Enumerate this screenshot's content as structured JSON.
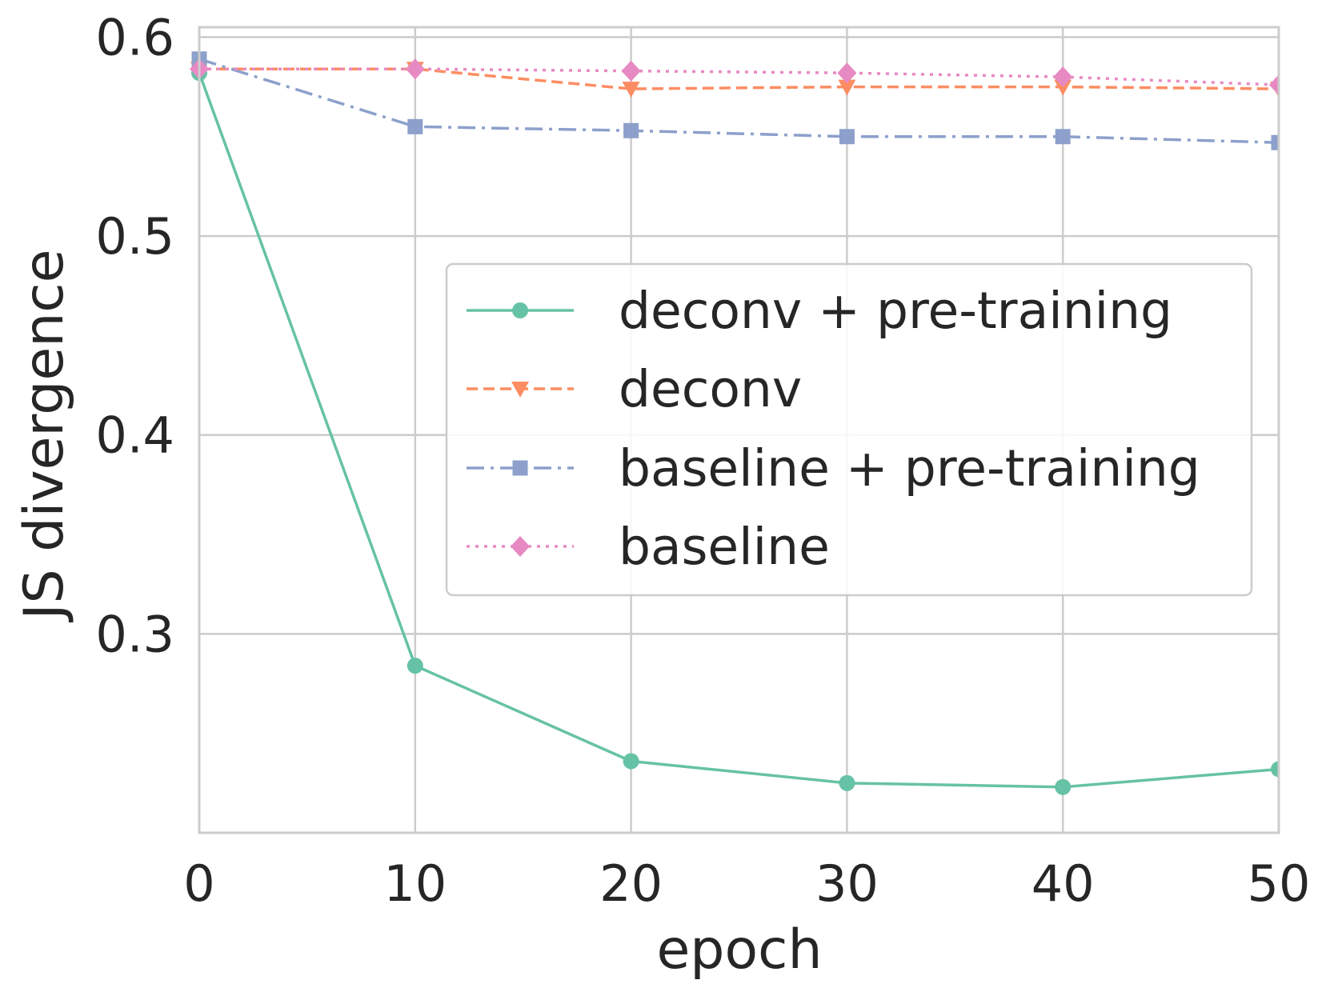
{
  "chart_data": {
    "type": "line",
    "title": "",
    "xlabel": "epoch",
    "ylabel": "JS divergence",
    "x": [
      0,
      10,
      20,
      30,
      40,
      50
    ],
    "xlim": [
      0,
      50
    ],
    "ylim": [
      0.2,
      0.605
    ],
    "xticks": [
      0,
      10,
      20,
      30,
      40,
      50
    ],
    "xtick_labels": [
      "0",
      "10",
      "20",
      "30",
      "40",
      "50"
    ],
    "yticks": [
      0.3,
      0.4,
      0.5,
      0.6
    ],
    "ytick_labels": [
      "0.3",
      "0.4",
      "0.5",
      "0.6"
    ],
    "grid": true,
    "legend_position": "center-right",
    "series": [
      {
        "name": "deconv + pre-training",
        "values": [
          0.582,
          0.284,
          0.236,
          0.225,
          0.223,
          0.232
        ],
        "color": "#66c2a5",
        "dash": "solid",
        "marker": "circle"
      },
      {
        "name": "deconv",
        "values": [
          0.584,
          0.584,
          0.574,
          0.575,
          0.575,
          0.574
        ],
        "color": "#fc8d62",
        "dash": "dashed",
        "marker": "triangle-down"
      },
      {
        "name": "baseline + pre-training",
        "values": [
          0.589,
          0.555,
          0.553,
          0.55,
          0.55,
          0.547
        ],
        "color": "#8da0cb",
        "dash": "dashdot",
        "marker": "square"
      },
      {
        "name": "baseline",
        "values": [
          0.584,
          0.584,
          0.583,
          0.582,
          0.58,
          0.576
        ],
        "color": "#e78ac3",
        "dash": "dotted",
        "marker": "diamond"
      }
    ]
  }
}
